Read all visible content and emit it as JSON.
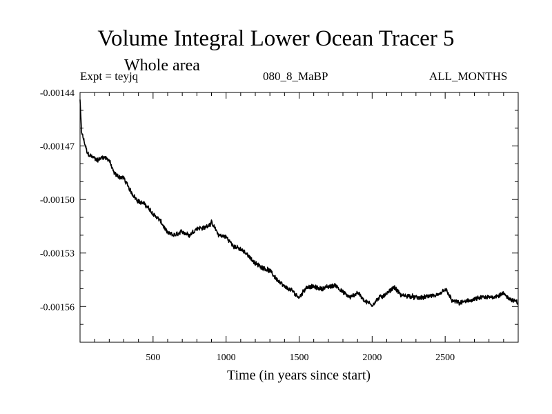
{
  "chart_data": {
    "type": "line",
    "title": "Volume Integral Lower Ocean Tracer 5",
    "subtitle": "Whole area",
    "expt_label": "Expt = teyjq",
    "period_label": "080_8_MaBP",
    "months_label": "ALL_MONTHS",
    "xlabel": "Time (in years since start)",
    "ylabel": "",
    "xlim": [
      0,
      3000
    ],
    "ylim": [
      -0.00158,
      -0.00144
    ],
    "x_ticks": [
      500,
      1000,
      1500,
      2000,
      2500
    ],
    "y_ticks": [
      -0.00144,
      -0.00147,
      -0.0015,
      -0.00153,
      -0.00156
    ],
    "y_tick_labels": [
      "-0.00144",
      "-0.00147",
      "-0.00150",
      "-0.00153",
      "-0.00156"
    ],
    "series": [
      {
        "name": "tracer5",
        "x": [
          0,
          10,
          30,
          50,
          80,
          120,
          160,
          200,
          230,
          260,
          300,
          350,
          400,
          450,
          500,
          550,
          600,
          650,
          700,
          750,
          800,
          850,
          900,
          950,
          1000,
          1050,
          1100,
          1150,
          1200,
          1250,
          1300,
          1350,
          1400,
          1450,
          1500,
          1550,
          1600,
          1650,
          1700,
          1750,
          1800,
          1850,
          1900,
          1950,
          2000,
          2050,
          2100,
          2150,
          2200,
          2250,
          2300,
          2350,
          2400,
          2450,
          2500,
          2550,
          2600,
          2650,
          2700,
          2750,
          2800,
          2850,
          2900,
          2950,
          3000
        ],
        "values": [
          -0.001444,
          -0.001462,
          -0.001468,
          -0.001474,
          -0.001476,
          -0.001478,
          -0.001476,
          -0.001478,
          -0.001485,
          -0.001487,
          -0.001488,
          -0.001496,
          -0.001501,
          -0.001503,
          -0.001508,
          -0.001512,
          -0.001519,
          -0.00152,
          -0.001518,
          -0.00152,
          -0.001516,
          -0.001516,
          -0.001513,
          -0.00152,
          -0.001521,
          -0.001526,
          -0.001528,
          -0.001531,
          -0.001536,
          -0.001538,
          -0.00154,
          -0.001545,
          -0.001549,
          -0.001551,
          -0.001555,
          -0.001549,
          -0.001549,
          -0.00155,
          -0.001549,
          -0.001548,
          -0.001552,
          -0.001555,
          -0.001552,
          -0.001557,
          -0.001559,
          -0.001555,
          -0.001553,
          -0.001549,
          -0.001554,
          -0.001554,
          -0.001555,
          -0.001555,
          -0.001554,
          -0.001554,
          -0.00155,
          -0.001557,
          -0.001558,
          -0.001557,
          -0.001556,
          -0.001555,
          -0.001555,
          -0.001554,
          -0.001553,
          -0.001556,
          -0.001558
        ]
      }
    ]
  }
}
